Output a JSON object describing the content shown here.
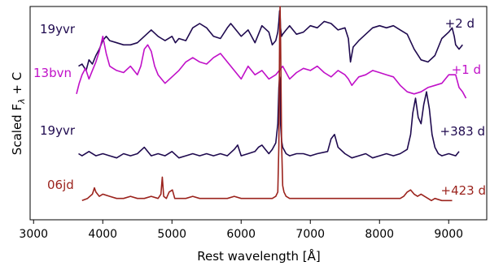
{
  "chart_data": {
    "type": "line",
    "xlabel": "Rest wavelength [Å]",
    "ylabel_main": "Scaled F",
    "ylabel_sub": "λ",
    "ylabel_tail": " + C",
    "xlim": [
      2950,
      9550
    ],
    "ylim": [
      0,
      100
    ],
    "xticks": [
      3000,
      4000,
      5000,
      6000,
      7000,
      8000,
      9000
    ],
    "yticks_shown": false,
    "grid": false,
    "series": [
      {
        "name": "19yvr",
        "epoch": "+2 d",
        "color": "#1f0a4f",
        "x": [
          3650,
          3700,
          3760,
          3800,
          3850,
          3900,
          3950,
          4000,
          4050,
          4100,
          4200,
          4300,
          4400,
          4500,
          4600,
          4700,
          4800,
          4850,
          4900,
          5000,
          5050,
          5100,
          5200,
          5300,
          5400,
          5500,
          5600,
          5700,
          5800,
          5850,
          5900,
          6000,
          6100,
          6200,
          6300,
          6400,
          6450,
          6500,
          6530,
          6545,
          6556,
          6563,
          6570,
          6585,
          6600,
          6650,
          6700,
          6800,
          6900,
          7000,
          7100,
          7200,
          7300,
          7400,
          7500,
          7550,
          7580,
          7620,
          7700,
          7800,
          7900,
          8000,
          8100,
          8200,
          8300,
          8400,
          8500,
          8600,
          8700,
          8800,
          8900,
          9000,
          9050,
          9080,
          9100,
          9150,
          9200
        ],
        "y": [
          72,
          73,
          70,
          75,
          73,
          77,
          80,
          84,
          86,
          84,
          83,
          82,
          82,
          83,
          86,
          89,
          86,
          85,
          84,
          86,
          83,
          85,
          84,
          90,
          92,
          90,
          86,
          85,
          90,
          92,
          90,
          86,
          89,
          83,
          91,
          88,
          82,
          84,
          88,
          93,
          98,
          96,
          90,
          86,
          87,
          89,
          91,
          87,
          88,
          91,
          90,
          93,
          92,
          89,
          90,
          85,
          74,
          81,
          84,
          87,
          90,
          91,
          90,
          91,
          89,
          87,
          80,
          75,
          74,
          77,
          85,
          88,
          90,
          86,
          82,
          80,
          82
        ]
      },
      {
        "name": "13bvn",
        "epoch": "+1 d",
        "color": "#c010c8",
        "x": [
          3620,
          3660,
          3700,
          3750,
          3800,
          3850,
          3900,
          3950,
          4000,
          4050,
          4100,
          4150,
          4200,
          4300,
          4400,
          4500,
          4550,
          4600,
          4650,
          4700,
          4750,
          4800,
          4900,
          5000,
          5100,
          5200,
          5300,
          5400,
          5500,
          5600,
          5700,
          5800,
          5900,
          6000,
          6100,
          6200,
          6300,
          6400,
          6500,
          6600,
          6700,
          6800,
          6900,
          7000,
          7100,
          7200,
          7300,
          7400,
          7500,
          7550,
          7600,
          7650,
          7700,
          7800,
          7900,
          8000,
          8100,
          8200,
          8300,
          8400,
          8500,
          8600,
          8700,
          8800,
          8900,
          9000,
          9100,
          9150,
          9200,
          9250
        ],
        "y": [
          59,
          64,
          68,
          71,
          66,
          70,
          74,
          79,
          86,
          78,
          72,
          71,
          70,
          69,
          72,
          68,
          72,
          80,
          82,
          79,
          72,
          68,
          64,
          67,
          70,
          74,
          76,
          74,
          73,
          76,
          78,
          74,
          70,
          66,
          72,
          68,
          70,
          66,
          68,
          72,
          66,
          69,
          71,
          70,
          72,
          69,
          67,
          70,
          68,
          66,
          63,
          65,
          67,
          68,
          70,
          69,
          68,
          67,
          63,
          60,
          59,
          60,
          62,
          63,
          64,
          68,
          68,
          62,
          60,
          57
        ]
      },
      {
        "name": "19yvr",
        "epoch": "+383 d",
        "color": "#1f0a4f",
        "x": [
          3650,
          3700,
          3800,
          3900,
          4000,
          4100,
          4200,
          4300,
          4400,
          4500,
          4600,
          4700,
          4800,
          4900,
          5000,
          5100,
          5200,
          5300,
          5400,
          5500,
          5600,
          5700,
          5800,
          5900,
          5950,
          6000,
          6100,
          6200,
          6250,
          6300,
          6350,
          6400,
          6450,
          6500,
          6530,
          6545,
          6556,
          6563,
          6570,
          6585,
          6600,
          6650,
          6700,
          6800,
          6900,
          7000,
          7100,
          7250,
          7300,
          7350,
          7400,
          7500,
          7600,
          7700,
          7800,
          7900,
          8000,
          8100,
          8200,
          8300,
          8400,
          8450,
          8480,
          8520,
          8560,
          8600,
          8640,
          8680,
          8720,
          8760,
          8800,
          8850,
          8900,
          9000,
          9100,
          9150
        ],
        "y": [
          31,
          30,
          32,
          30,
          31,
          30,
          29,
          31,
          30,
          31,
          34,
          30,
          31,
          30,
          32,
          29,
          30,
          31,
          30,
          31,
          30,
          31,
          30,
          33,
          35,
          30,
          31,
          32,
          34,
          35,
          33,
          31,
          33,
          36,
          45,
          62,
          67,
          64,
          45,
          37,
          34,
          31,
          30,
          31,
          31,
          30,
          31,
          32,
          38,
          40,
          34,
          31,
          29,
          30,
          31,
          29,
          30,
          31,
          30,
          31,
          33,
          40,
          50,
          57,
          48,
          45,
          54,
          60,
          52,
          40,
          34,
          31,
          30,
          31,
          30,
          32
        ]
      },
      {
        "name": "06jd",
        "epoch": "+423 d",
        "color": "#9b231d",
        "x": [
          3700,
          3780,
          3850,
          3880,
          3900,
          3950,
          4000,
          4100,
          4200,
          4300,
          4400,
          4500,
          4600,
          4700,
          4800,
          4840,
          4861,
          4880,
          4920,
          4959,
          5007,
          5040,
          5100,
          5200,
          5300,
          5400,
          5500,
          5600,
          5700,
          5800,
          5900,
          6000,
          6100,
          6200,
          6300,
          6400,
          6450,
          6500,
          6530,
          6545,
          6556,
          6563,
          6570,
          6585,
          6600,
          6620,
          6650,
          6700,
          6800,
          6900,
          7000,
          7100,
          7200,
          7300,
          7400,
          7500,
          7600,
          7700,
          7800,
          7900,
          8000,
          8100,
          8200,
          8300,
          8350,
          8400,
          8450,
          8500,
          8550,
          8600,
          8650,
          8700,
          8750,
          8800,
          8900,
          9000,
          9050
        ],
        "y": [
          9,
          10,
          12,
          15,
          13,
          11,
          12,
          11,
          10,
          10,
          11,
          10,
          10,
          11,
          10,
          12,
          20,
          11,
          10,
          13,
          14,
          10,
          10,
          10,
          11,
          10,
          10,
          10,
          10,
          10,
          11,
          10,
          10,
          10,
          10,
          10,
          10,
          11,
          13,
          35,
          85,
          100,
          85,
          35,
          16,
          13,
          11,
          10,
          10,
          10,
          10,
          10,
          10,
          10,
          10,
          10,
          10,
          10,
          10,
          10,
          10,
          10,
          10,
          10,
          11,
          13,
          14,
          12,
          11,
          12,
          11,
          10,
          9,
          10,
          9,
          9,
          9
        ]
      }
    ],
    "annotations": [
      {
        "series": 0,
        "side": "left",
        "text": "19yvr",
        "color": "#1f0a4f"
      },
      {
        "series": 0,
        "side": "right",
        "text": "+2 d",
        "color": "#1f0a4f"
      },
      {
        "series": 1,
        "side": "left",
        "text": "13bvn",
        "color": "#c010c8"
      },
      {
        "series": 1,
        "side": "right",
        "text": "+1 d",
        "color": "#c010c8"
      },
      {
        "series": 2,
        "side": "left",
        "text": "19yvr",
        "color": "#1f0a4f"
      },
      {
        "series": 2,
        "side": "right",
        "text": "+383 d",
        "color": "#1f0a4f"
      },
      {
        "series": 3,
        "side": "left",
        "text": "06jd",
        "color": "#9b231d"
      },
      {
        "series": 3,
        "side": "right",
        "text": "+423 d",
        "color": "#9b231d"
      }
    ]
  }
}
